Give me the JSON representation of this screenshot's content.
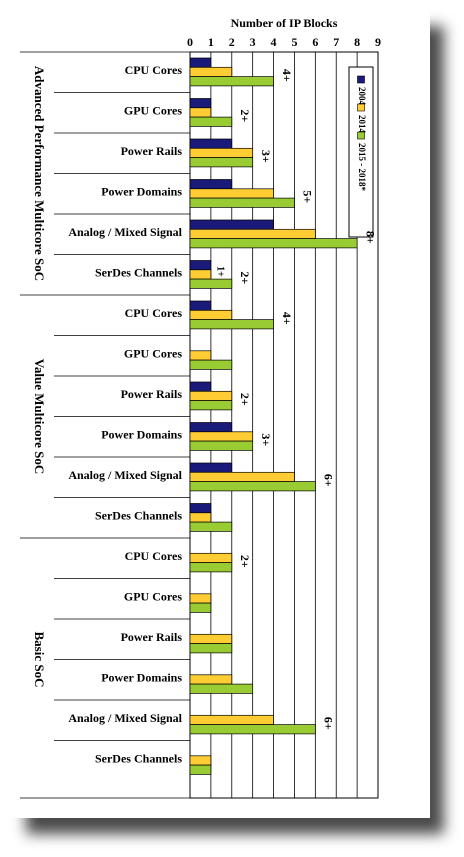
{
  "chart_data": {
    "type": "bar",
    "orientation": "horizontal",
    "title": "Number of IP Blocks",
    "xlim": [
      0,
      9
    ],
    "x_ticks": [
      "0",
      "1",
      "2",
      "3",
      "4",
      "5",
      "6",
      "7",
      "8",
      "9"
    ],
    "grid": true,
    "legend_position": "top-right",
    "series": [
      {
        "name": "2004",
        "color": "#1a1a7a"
      },
      {
        "name": "2014",
        "color": "#ffcc33"
      },
      {
        "name": "2015 - 2018*",
        "color": "#99cc33"
      }
    ],
    "groups": [
      {
        "name": "Advanced Performance Multicore SoC",
        "rows": [
          {
            "label": "CPU Cores",
            "values": [
              1,
              2,
              4
            ],
            "annotation": "4+"
          },
          {
            "label": "GPU Cores",
            "values": [
              1,
              1,
              2
            ],
            "annotation": "2+"
          },
          {
            "label": "Power Rails",
            "values": [
              2,
              3,
              3
            ],
            "annotation": "3+"
          },
          {
            "label": "Power Domains",
            "values": [
              2,
              4,
              5
            ],
            "annotation": "5+"
          },
          {
            "label": "Analog / Mixed Signal",
            "values": [
              4,
              6,
              8
            ],
            "annotation": "8+"
          },
          {
            "label": "SerDes Channels",
            "values": [
              1,
              1,
              2
            ],
            "annotation": "2+",
            "annotation_2014": "1+"
          }
        ]
      },
      {
        "name": "Value Multicore SoC",
        "rows": [
          {
            "label": "CPU Cores",
            "values": [
              1,
              2,
              4
            ],
            "annotation": "4+"
          },
          {
            "label": "GPU Cores",
            "values": [
              0,
              1,
              2
            ],
            "annotation": ""
          },
          {
            "label": "Power Rails",
            "values": [
              1,
              2,
              2
            ],
            "annotation": "2+"
          },
          {
            "label": "Power Domains",
            "values": [
              2,
              3,
              3
            ],
            "annotation": "3+"
          },
          {
            "label": "Analog / Mixed Signal",
            "values": [
              2,
              5,
              6
            ],
            "annotation": "6+"
          },
          {
            "label": "SerDes Channels",
            "values": [
              1,
              1,
              2
            ],
            "annotation": ""
          }
        ]
      },
      {
        "name": "Basic SoC",
        "rows": [
          {
            "label": "CPU Cores",
            "values": [
              0,
              2,
              2
            ],
            "annotation": "2+"
          },
          {
            "label": "GPU Cores",
            "values": [
              0,
              1,
              1
            ],
            "annotation": ""
          },
          {
            "label": "Power Rails",
            "values": [
              0,
              2,
              2
            ],
            "annotation": ""
          },
          {
            "label": "Power Domains",
            "values": [
              0,
              2,
              3
            ],
            "annotation": ""
          },
          {
            "label": "Analog / Mixed Signal",
            "values": [
              0,
              4,
              6
            ],
            "annotation": "6+"
          },
          {
            "label": "SerDes Channels",
            "values": [
              0,
              1,
              1
            ],
            "annotation": ""
          }
        ]
      }
    ]
  }
}
